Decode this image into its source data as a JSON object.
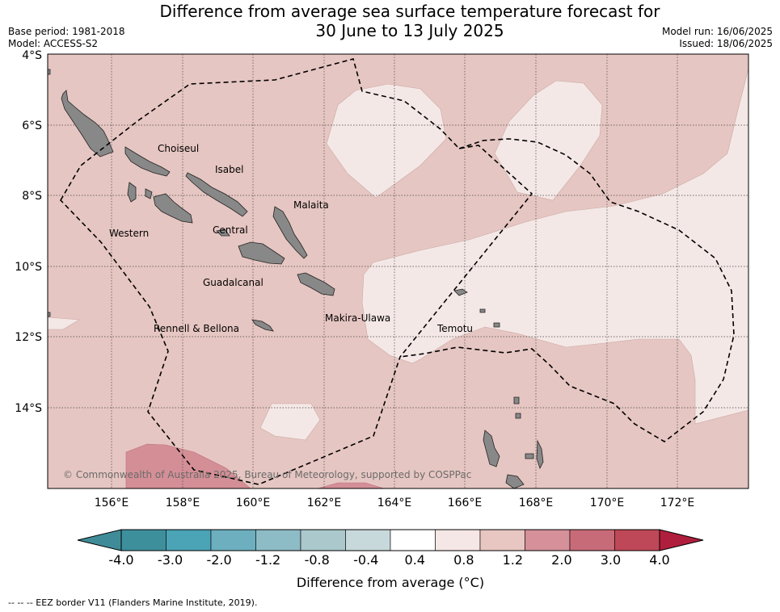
{
  "header": {
    "title_line1": "Difference from average sea surface temperature forecast for",
    "title_line2": "30 June to 13 July 2025",
    "base_period": "Base period: 1981-2018",
    "model": "Model: ACCESS-S2",
    "model_run": "Model run: 16/06/2025",
    "issued": "Issued: 18/06/2025"
  },
  "map": {
    "lat_ticks": [
      "4°S",
      "6°S",
      "8°S",
      "10°S",
      "12°S",
      "14°S"
    ],
    "lon_ticks": [
      "156°E",
      "158°E",
      "160°E",
      "162°E",
      "164°E",
      "166°E",
      "168°E",
      "170°E",
      "172°E"
    ],
    "province_labels": [
      "Choiseul",
      "Isabel",
      "Malaita",
      "Western",
      "Central",
      "Guadalcanal",
      "Makira-Ulawa",
      "Rennell & Bellona",
      "Temotu"
    ],
    "copyright": "© Commonwealth of Australia 2025, Bureau of Meteorology, supported by COSPPac",
    "colors": {
      "ocean_base": "#e6c6c2",
      "light_anomaly": "#f4e8e6",
      "warm_anomaly": "#d48f96",
      "land": "#888888"
    }
  },
  "colorbar": {
    "ticks": [
      "-4.0",
      "-3.0",
      "-2.0",
      "-1.2",
      "-0.8",
      "-0.4",
      "0.4",
      "0.8",
      "1.2",
      "2.0",
      "3.0",
      "4.0"
    ],
    "colors": [
      "#3e8f9c",
      "#4ba3b6",
      "#6dafbf",
      "#8ebcc6",
      "#abc8cc",
      "#c8d9dc",
      "#ffffff",
      "#f5e7e5",
      "#e8c6c1",
      "#d5909a",
      "#c86b78",
      "#bf4858"
    ],
    "extend_low_color": "#3f8c98",
    "extend_high_color": "#b01e3d",
    "label": "Difference from average (°C)"
  },
  "footnote": "--  --  -- EEZ border V11 (Flanders Marine Institute, 2019)."
}
